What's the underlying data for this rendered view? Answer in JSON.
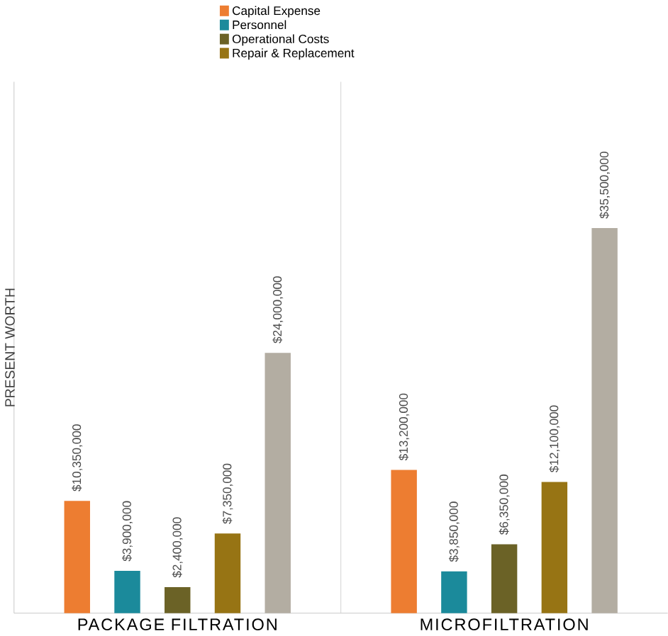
{
  "chart_data": {
    "type": "bar",
    "ylabel": "PRESENT WORTH",
    "categories": [
      "PACKAGE FILTRATION",
      "MICROFILTRATION"
    ],
    "series": [
      {
        "name": "Capital Expense",
        "color": "#ed7d31",
        "values": [
          10350000,
          13200000
        ],
        "value_labels": [
          "$10,350,000",
          "$13,200,000"
        ]
      },
      {
        "name": "Personnel",
        "color": "#1b8a9b",
        "values": [
          3900000,
          3850000
        ],
        "value_labels": [
          "$3,900,000",
          "$3,850,000"
        ]
      },
      {
        "name": "Operational Costs",
        "color": "#6b6226",
        "values": [
          2400000,
          6350000
        ],
        "value_labels": [
          "$2,400,000",
          "$6,350,000"
        ]
      },
      {
        "name": "Repair & Replacement",
        "color": "#977414",
        "values": [
          7350000,
          12100000
        ],
        "value_labels": [
          "$7,350,000",
          "$12,100,000"
        ]
      },
      {
        "color": "#b3ada2",
        "values": [
          24000000,
          35500000
        ],
        "value_labels": [
          "$24,000,000",
          "$35,500,000"
        ]
      }
    ],
    "legend": "top"
  }
}
